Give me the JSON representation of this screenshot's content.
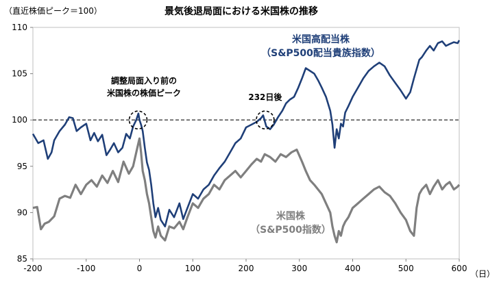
{
  "chart_data": {
    "type": "line",
    "title": "景気後退局面における米国株の推移",
    "subtitle": "（直近株価ピーク＝100）",
    "xlabel": "（日）",
    "ylabel": "",
    "xlim": [
      -200,
      600
    ],
    "ylim": [
      85,
      110
    ],
    "x_ticks": [
      "-200",
      "-100",
      "0",
      "100",
      "200",
      "300",
      "400",
      "500",
      "600"
    ],
    "y_ticks": [
      "85",
      "90",
      "95",
      "100",
      "105",
      "110"
    ],
    "reference_line": {
      "y": 100,
      "style": "dashed"
    },
    "grid": false,
    "legend": "inline-labels",
    "annotations": [
      {
        "line1": "調整局面入り前の",
        "line2": "米国株の株価ピーク",
        "x": 0,
        "y": 100
      },
      {
        "line1": "232日後",
        "line2": "",
        "x": 232,
        "y": 100
      }
    ],
    "series": [
      {
        "name": "米国高配当株",
        "name_line2": "（S&P500配当貴族指数）",
        "color": "#1f3f78",
        "x": [
          -200,
          -190,
          -180,
          -172,
          -165,
          -160,
          -150,
          -140,
          -132,
          -125,
          -118,
          -110,
          -100,
          -92,
          -85,
          -78,
          -70,
          -62,
          -55,
          -48,
          -40,
          -32,
          -25,
          -18,
          -12,
          -6,
          -2,
          0,
          3,
          6,
          10,
          14,
          18,
          22,
          26,
          30,
          35,
          40,
          48,
          56,
          65,
          75,
          82,
          90,
          100,
          110,
          120,
          130,
          140,
          150,
          160,
          170,
          180,
          190,
          200,
          210,
          220,
          228,
          232,
          238,
          245,
          252,
          260,
          268,
          275,
          282,
          290,
          298,
          305,
          312,
          320,
          328,
          335,
          342,
          350,
          358,
          362,
          366,
          370,
          374,
          378,
          382,
          386,
          392,
          400,
          410,
          420,
          430,
          440,
          450,
          460,
          470,
          480,
          490,
          500,
          508,
          515,
          520,
          525,
          530,
          538,
          545,
          552,
          560,
          568,
          575,
          582,
          590,
          597,
          600
        ],
        "values": [
          98.5,
          97.5,
          97.8,
          95.8,
          96.5,
          97.8,
          98.8,
          99.5,
          100.3,
          100.2,
          98.8,
          99.2,
          99.6,
          97.8,
          98.6,
          97.7,
          98.4,
          96.2,
          96.8,
          97.5,
          96.5,
          97.0,
          98.5,
          98.0,
          99.3,
          100.0,
          100.7,
          100.0,
          99.5,
          98.8,
          97.0,
          95.4,
          94.6,
          93.0,
          91.0,
          89.5,
          90.5,
          89.2,
          88.5,
          90.3,
          89.5,
          91.0,
          89.3,
          90.5,
          92.0,
          91.5,
          92.5,
          93.0,
          94.0,
          94.8,
          95.5,
          96.5,
          97.5,
          98.0,
          99.2,
          99.5,
          99.8,
          100.2,
          100.5,
          99.3,
          99.0,
          99.5,
          100.3,
          101.0,
          101.8,
          102.2,
          102.5,
          103.5,
          104.5,
          105.6,
          105.3,
          105.0,
          104.3,
          103.5,
          102.5,
          101.0,
          99.5,
          97.0,
          99.0,
          98.0,
          99.6,
          99.3,
          100.8,
          101.5,
          102.5,
          103.5,
          104.5,
          105.3,
          105.8,
          106.2,
          105.8,
          104.8,
          104.0,
          103.2,
          102.3,
          103.0,
          104.5,
          105.5,
          106.5,
          106.8,
          107.5,
          108.0,
          107.5,
          108.3,
          108.5,
          108.0,
          108.2,
          108.4,
          108.3,
          108.6
        ]
      },
      {
        "name": "米国株",
        "name_line2": "（S&P500指数）",
        "color": "#7f7f7f",
        "x": [
          -200,
          -192,
          -185,
          -178,
          -170,
          -160,
          -150,
          -140,
          -130,
          -120,
          -110,
          -100,
          -90,
          -80,
          -70,
          -60,
          -50,
          -40,
          -30,
          -20,
          -12,
          -6,
          -2,
          0,
          3,
          6,
          10,
          14,
          18,
          22,
          26,
          30,
          35,
          40,
          48,
          56,
          65,
          75,
          82,
          90,
          100,
          110,
          120,
          130,
          140,
          150,
          160,
          170,
          180,
          190,
          200,
          210,
          220,
          228,
          235,
          245,
          255,
          265,
          275,
          285,
          295,
          305,
          312,
          320,
          328,
          335,
          342,
          350,
          358,
          362,
          366,
          370,
          374,
          378,
          382,
          386,
          392,
          400,
          410,
          420,
          430,
          440,
          450,
          460,
          470,
          480,
          490,
          500,
          508,
          515,
          520,
          525,
          530,
          538,
          545,
          552,
          560,
          568,
          575,
          582,
          590,
          597,
          600
        ],
        "values": [
          90.5,
          90.6,
          88.2,
          88.8,
          89.0,
          89.6,
          91.5,
          91.8,
          91.6,
          93.0,
          92.0,
          93.0,
          93.5,
          92.8,
          94.0,
          93.2,
          94.5,
          93.3,
          95.5,
          94.2,
          95.0,
          96.5,
          97.5,
          98.0,
          96.5,
          94.5,
          93.5,
          92.0,
          91.0,
          89.5,
          88.0,
          87.3,
          88.5,
          87.5,
          87.0,
          88.5,
          88.3,
          89.0,
          88.2,
          89.5,
          91.0,
          90.5,
          91.5,
          92.0,
          93.0,
          92.5,
          93.5,
          94.0,
          94.5,
          93.8,
          94.5,
          95.2,
          95.8,
          95.5,
          96.3,
          96.0,
          95.5,
          96.3,
          96.0,
          96.5,
          96.8,
          95.5,
          94.5,
          93.5,
          93.0,
          92.5,
          92.0,
          91.0,
          90.0,
          88.5,
          87.5,
          86.8,
          88.0,
          87.5,
          88.5,
          89.0,
          89.5,
          90.5,
          91.0,
          91.5,
          92.0,
          92.5,
          92.8,
          92.2,
          91.8,
          91.0,
          90.0,
          89.2,
          88.0,
          87.5,
          90.5,
          92.0,
          92.5,
          93.0,
          92.0,
          92.8,
          93.5,
          92.5,
          93.0,
          93.3,
          92.5,
          92.8,
          93.0
        ]
      }
    ]
  }
}
